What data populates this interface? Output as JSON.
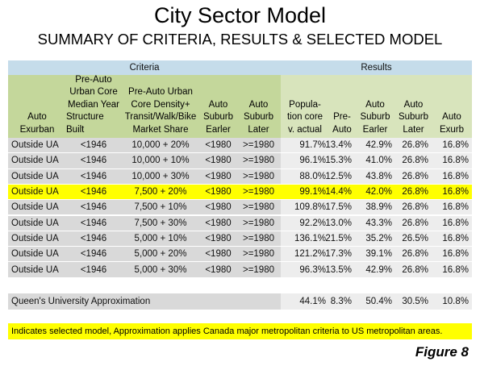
{
  "header": {
    "title": "City Sector Model",
    "subtitle": "SUMMARY OF CRITERIA, RESULTS & SELECTED MODEL"
  },
  "table": {
    "groups": [
      "Criteria",
      "Results"
    ],
    "headers": [
      [
        "Auto",
        "Exurban"
      ],
      [
        "Pre-Auto",
        "Urban Core",
        "Median Year",
        "Structure Built"
      ],
      [
        "Pre-Auto Urban",
        "Core Density+",
        "Transit/Walk/Bike",
        "Market Share"
      ],
      [
        "Auto",
        "Suburb",
        "Earler"
      ],
      [
        "Auto",
        "Suburb",
        "Later"
      ],
      [
        "Popula-",
        "tion core",
        "v. actual"
      ],
      [
        "Pre-",
        "Auto"
      ],
      [
        "Auto",
        "Suburb",
        "Earler"
      ],
      [
        "Auto",
        "Suburb",
        "Later"
      ],
      [
        "Auto",
        "Exurb"
      ]
    ],
    "rows": [
      [
        "Outside UA",
        "<1946",
        "10,000 + 20%",
        "<1980",
        ">=1980",
        "91.7%",
        "13.4%",
        "42.9%",
        "26.8%",
        "16.8%"
      ],
      [
        "Outside UA",
        "<1946",
        "10,000 + 10%",
        "<1980",
        ">=1980",
        "96.1%",
        "15.3%",
        "41.0%",
        "26.8%",
        "16.8%"
      ],
      [
        "Outside UA",
        "<1946",
        "10,000 + 30%",
        "<1980",
        ">=1980",
        "88.0%",
        "12.5%",
        "43.8%",
        "26.8%",
        "16.8%"
      ],
      [
        "Outside UA",
        "<1946",
        "7,500 + 20%",
        "<1980",
        ">=1980",
        "99.1%",
        "14.4%",
        "42.0%",
        "26.8%",
        "16.8%"
      ],
      [
        "Outside UA",
        "<1946",
        "7,500 + 10%",
        "<1980",
        ">=1980",
        "109.8%",
        "17.5%",
        "38.9%",
        "26.8%",
        "16.8%"
      ],
      [
        "Outside UA",
        "<1946",
        "7,500 + 30%",
        "<1980",
        ">=1980",
        "92.2%",
        "13.0%",
        "43.3%",
        "26.8%",
        "16.8%"
      ],
      [
        "Outside UA",
        "<1946",
        "5,000 + 10%",
        "<1980",
        ">=1980",
        "136.1%",
        "21.5%",
        "35.2%",
        "26.5%",
        "16.8%"
      ],
      [
        "Outside UA",
        "<1946",
        "5,000 + 20%",
        "<1980",
        ">=1980",
        "121.2%",
        "17.3%",
        "39.1%",
        "26.8%",
        "16.8%"
      ],
      [
        "Outside UA",
        "<1946",
        "5,000 + 30%",
        "<1980",
        ">=1980",
        "96.3%",
        "13.5%",
        "42.9%",
        "26.8%",
        "16.8%"
      ]
    ],
    "highlight": {
      "row": 3,
      "color": "#ffff00"
    },
    "approximation": {
      "label": "Queen's University Approximation",
      "values": [
        "44.1%",
        "8.3%",
        "50.4%",
        "30.5%",
        "10.8%"
      ]
    }
  },
  "note": "Indicates selected model, Approximation applies Canada major metropolitan criteria to US metropolitan areas.",
  "figure_label": "Figure 8"
}
